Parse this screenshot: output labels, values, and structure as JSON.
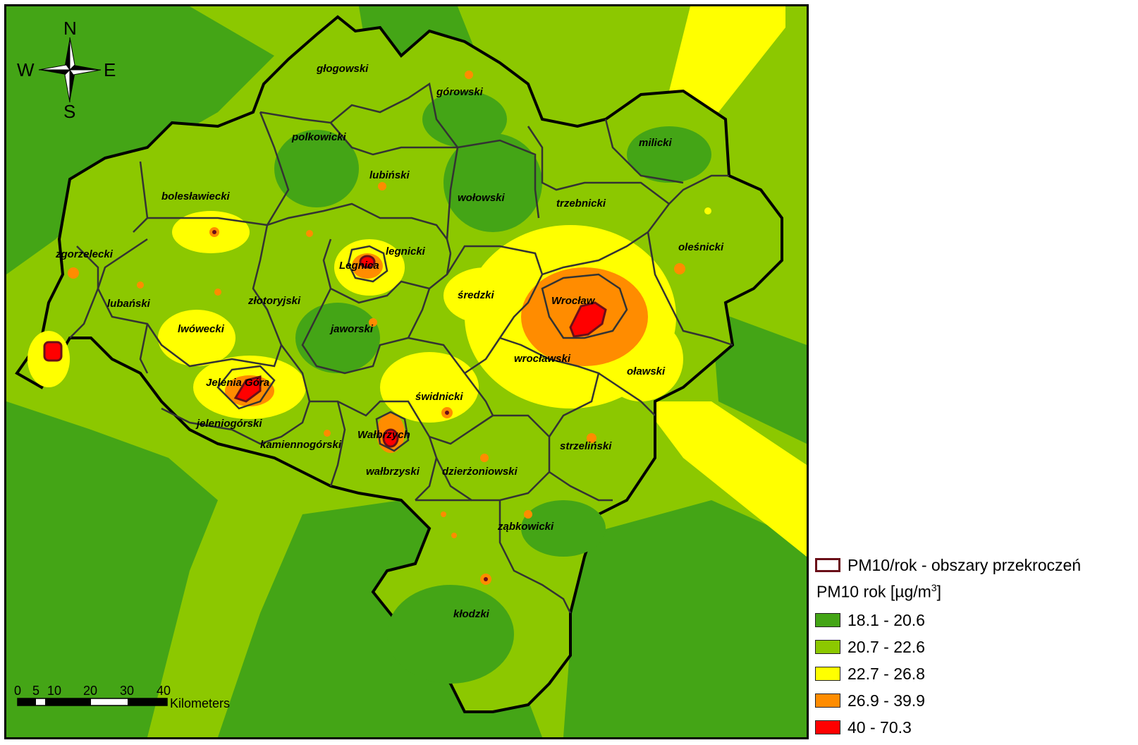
{
  "compass": {
    "north": "N",
    "south": "S",
    "east": "E",
    "west": "W"
  },
  "districts": [
    "głogowski",
    "górowski",
    "polkowicki",
    "milicki",
    "lubiński",
    "wołowski",
    "bolesławiecki",
    "trzebnicki",
    "zgorzelecki",
    "legnicki",
    "Legnica",
    "oleśnicki",
    "lubański",
    "średzki",
    "Wrocław",
    "złotoryjski",
    "lwówecki",
    "jaworski",
    "wrocławski",
    "oławski",
    "Jelenia Góra",
    "świdnicki",
    "jeleniogórski",
    "Wałbrzych",
    "kamiennogórski",
    "strzeliński",
    "wałbrzyski",
    "dzierżoniowski",
    "ząbkowicki",
    "kłodzki"
  ],
  "scale_bar": {
    "ticks": [
      "0",
      "5",
      "10",
      "20",
      "30",
      "40"
    ],
    "unit": "Kilometers"
  },
  "legend": {
    "exceedance_label": "PM10/rok - obszary przekroczeń",
    "exceedance_color": "#6a0f18",
    "title_main": "PM10 rok [µg/m",
    "title_sup": "3",
    "title_end": "]",
    "classes": [
      {
        "label": "18.1 - 20.6",
        "color": "#44a516"
      },
      {
        "label": "20.7 - 22.6",
        "color": "#8cc800"
      },
      {
        "label": "22.7 - 26.8",
        "color": "#ffff00"
      },
      {
        "label": "26.9 - 39.9",
        "color": "#ff8c00"
      },
      {
        "label": "40 - 70.3",
        "color": "#ff0000"
      }
    ]
  }
}
